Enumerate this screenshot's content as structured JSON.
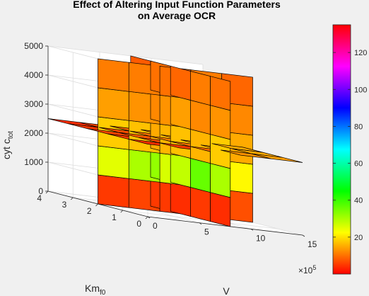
{
  "chart_data": {
    "type": "heatmap",
    "plot_kind": "3-D slice plot (three orthogonal colored planes)",
    "title_line1": "Effect of Altering Input Function Parameters",
    "title_line2": "on Average OCR",
    "axes": {
      "x": {
        "label_main": "V",
        "ticks": [
          "0",
          "5",
          "10",
          "15"
        ],
        "exponent_base": "×10",
        "exponent_power": "5",
        "range": [
          0,
          15
        ]
      },
      "y": {
        "label_main": "Km",
        "label_sub": "f0",
        "ticks": [
          "0",
          "1",
          "2",
          "3",
          "4"
        ],
        "range": [
          0,
          4
        ]
      },
      "z": {
        "label_main": "cyt c",
        "label_sub": "tot",
        "ticks": [
          "0",
          "1000",
          "2000",
          "3000",
          "4000",
          "5000"
        ],
        "range": [
          0,
          5000
        ]
      }
    },
    "colorbar": {
      "colormap": "hsv",
      "range": [
        0,
        135
      ],
      "ticks": [
        "20",
        "40",
        "60",
        "80",
        "100",
        "120"
      ]
    },
    "slices": {
      "horizontal_plane_z": 2500,
      "plane_constant_V": 8,
      "plane_constant_Km": 2
    },
    "cells": {
      "km_plane_V_edges": [
        0,
        3,
        6,
        9,
        12,
        15
      ],
      "km_plane_z_edges": [
        0,
        1000,
        2000,
        3000,
        4000,
        5000
      ],
      "km_plane_values": [
        [
          5,
          6,
          5,
          6,
          7
        ],
        [
          25,
          30,
          26,
          28,
          22
        ],
        [
          18,
          17,
          16,
          17,
          15
        ],
        [
          14,
          13,
          13,
          14,
          12
        ],
        [
          11,
          11,
          10,
          11,
          9
        ]
      ],
      "v_plane_Km_edges": [
        0,
        0.8,
        1.6,
        2.4,
        3.2,
        4.0
      ],
      "v_plane_z_edges": [
        0,
        1000,
        2000,
        3000,
        4000,
        5000
      ],
      "v_plane_values": [
        [
          4,
          5,
          4,
          5,
          6
        ],
        [
          30,
          36,
          28,
          32,
          24
        ],
        [
          18,
          16,
          17,
          15,
          16
        ],
        [
          13,
          12,
          14,
          12,
          13
        ],
        [
          10,
          11,
          9,
          10,
          8
        ]
      ],
      "horizontal_V_edges": [
        0,
        3,
        6,
        9,
        12,
        15
      ],
      "horizontal_Km_edges": [
        0,
        0.8,
        1.6,
        2.4,
        3.2,
        4.0
      ],
      "horizontal_values": [
        [
          4,
          5,
          9,
          13,
          14
        ],
        [
          5,
          7,
          10,
          14,
          15
        ],
        [
          6,
          8,
          11,
          14,
          15
        ],
        [
          5,
          7,
          10,
          13,
          14
        ],
        [
          4,
          6,
          9,
          12,
          13
        ]
      ]
    }
  }
}
